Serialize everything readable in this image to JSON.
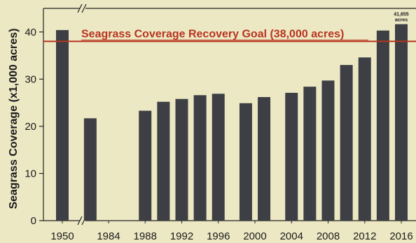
{
  "chart_data": {
    "type": "bar",
    "ylabel": "Seagrass Coverage (x1,000 acres)",
    "ylim": [
      0,
      45
    ],
    "yticks": [
      "0",
      "10",
      "20",
      "30",
      "40"
    ],
    "x_tick_labels": [
      "1950",
      "1984",
      "1988",
      "1992",
      "1996",
      "2000",
      "2004",
      "2008",
      "2012",
      "2016"
    ],
    "x_tick_years": [
      1950,
      1984,
      1988,
      1992,
      1996,
      2000,
      2004,
      2008,
      2012,
      2016
    ],
    "x": [
      1950,
      1982,
      1988,
      1990,
      1992,
      1994,
      1996,
      1999,
      2001,
      2004,
      2006,
      2008,
      2010,
      2012,
      2014,
      2016
    ],
    "values": [
      40.4,
      21.7,
      23.3,
      25.2,
      25.8,
      26.6,
      26.9,
      24.9,
      26.2,
      27.1,
      28.4,
      29.7,
      33.0,
      34.6,
      40.3,
      41.655
    ],
    "axis_break": true,
    "goal": {
      "value": 38,
      "label": "Seagrass Coverage Recovery Goal (38,000 acres)",
      "color": "#b8341f"
    },
    "data_labels": [
      {
        "year": 2016,
        "lines": [
          "41,655",
          "acres"
        ]
      }
    ],
    "bar_color": "#3e3f44",
    "background_color": "#ece8c4",
    "grid": false
  }
}
